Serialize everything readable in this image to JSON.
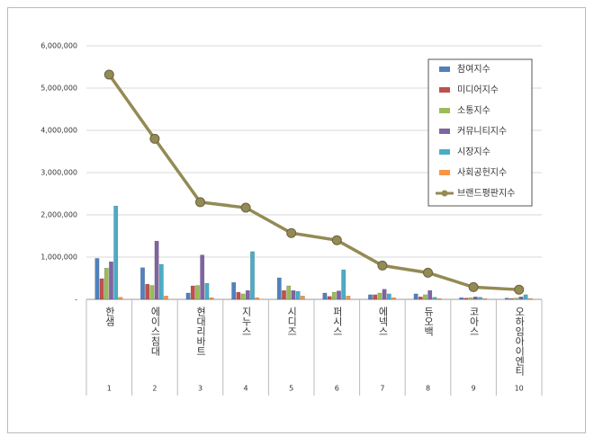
{
  "chart_data": {
    "type": "bar",
    "categories": [
      "한샘",
      "에이스침대",
      "현대리바트",
      "지누스",
      "시디즈",
      "퍼시스",
      "에넥스",
      "듀오백",
      "코아스",
      "오하임아이엔티"
    ],
    "ranks": [
      "1",
      "2",
      "3",
      "4",
      "5",
      "6",
      "7",
      "8",
      "9",
      "10"
    ],
    "series": [
      {
        "name": "참여지수",
        "color": "#4f81bd",
        "values": [
          970000,
          750000,
          150000,
          400000,
          510000,
          150000,
          110000,
          130000,
          40000,
          30000
        ]
      },
      {
        "name": "미디어지수",
        "color": "#c0504d",
        "values": [
          490000,
          360000,
          320000,
          170000,
          210000,
          70000,
          110000,
          60000,
          30000,
          20000
        ]
      },
      {
        "name": "소통지수",
        "color": "#9bbb59",
        "values": [
          740000,
          330000,
          330000,
          130000,
          320000,
          170000,
          150000,
          110000,
          40000,
          30000
        ]
      },
      {
        "name": "커뮤니티지수",
        "color": "#8064a2",
        "values": [
          890000,
          1380000,
          1050000,
          210000,
          210000,
          200000,
          240000,
          210000,
          60000,
          60000
        ]
      },
      {
        "name": "시장지수",
        "color": "#4bacc6",
        "values": [
          2210000,
          830000,
          380000,
          1130000,
          190000,
          700000,
          130000,
          50000,
          50000,
          110000
        ]
      },
      {
        "name": "사회공헌지수",
        "color": "#f79646",
        "values": [
          50000,
          80000,
          40000,
          40000,
          80000,
          80000,
          40000,
          20000,
          20000,
          20000
        ]
      },
      {
        "name": "브랜드평판지수",
        "color": "#948a54",
        "type": "line",
        "values": [
          5320000,
          3800000,
          2300000,
          2170000,
          1570000,
          1400000,
          800000,
          630000,
          290000,
          230000
        ]
      }
    ],
    "ylim": [
      0,
      6000000
    ],
    "yticks": [
      {
        "value": 0,
        "label": "-"
      },
      {
        "value": 1000000,
        "label": "1,000,000"
      },
      {
        "value": 2000000,
        "label": "2,000,000"
      },
      {
        "value": 3000000,
        "label": "3,000,000"
      },
      {
        "value": 4000000,
        "label": "4,000,000"
      },
      {
        "value": 5000000,
        "label": "5,000,000"
      },
      {
        "value": 6000000,
        "label": "6,000,000"
      }
    ],
    "grid": true,
    "legend": "upper right"
  }
}
